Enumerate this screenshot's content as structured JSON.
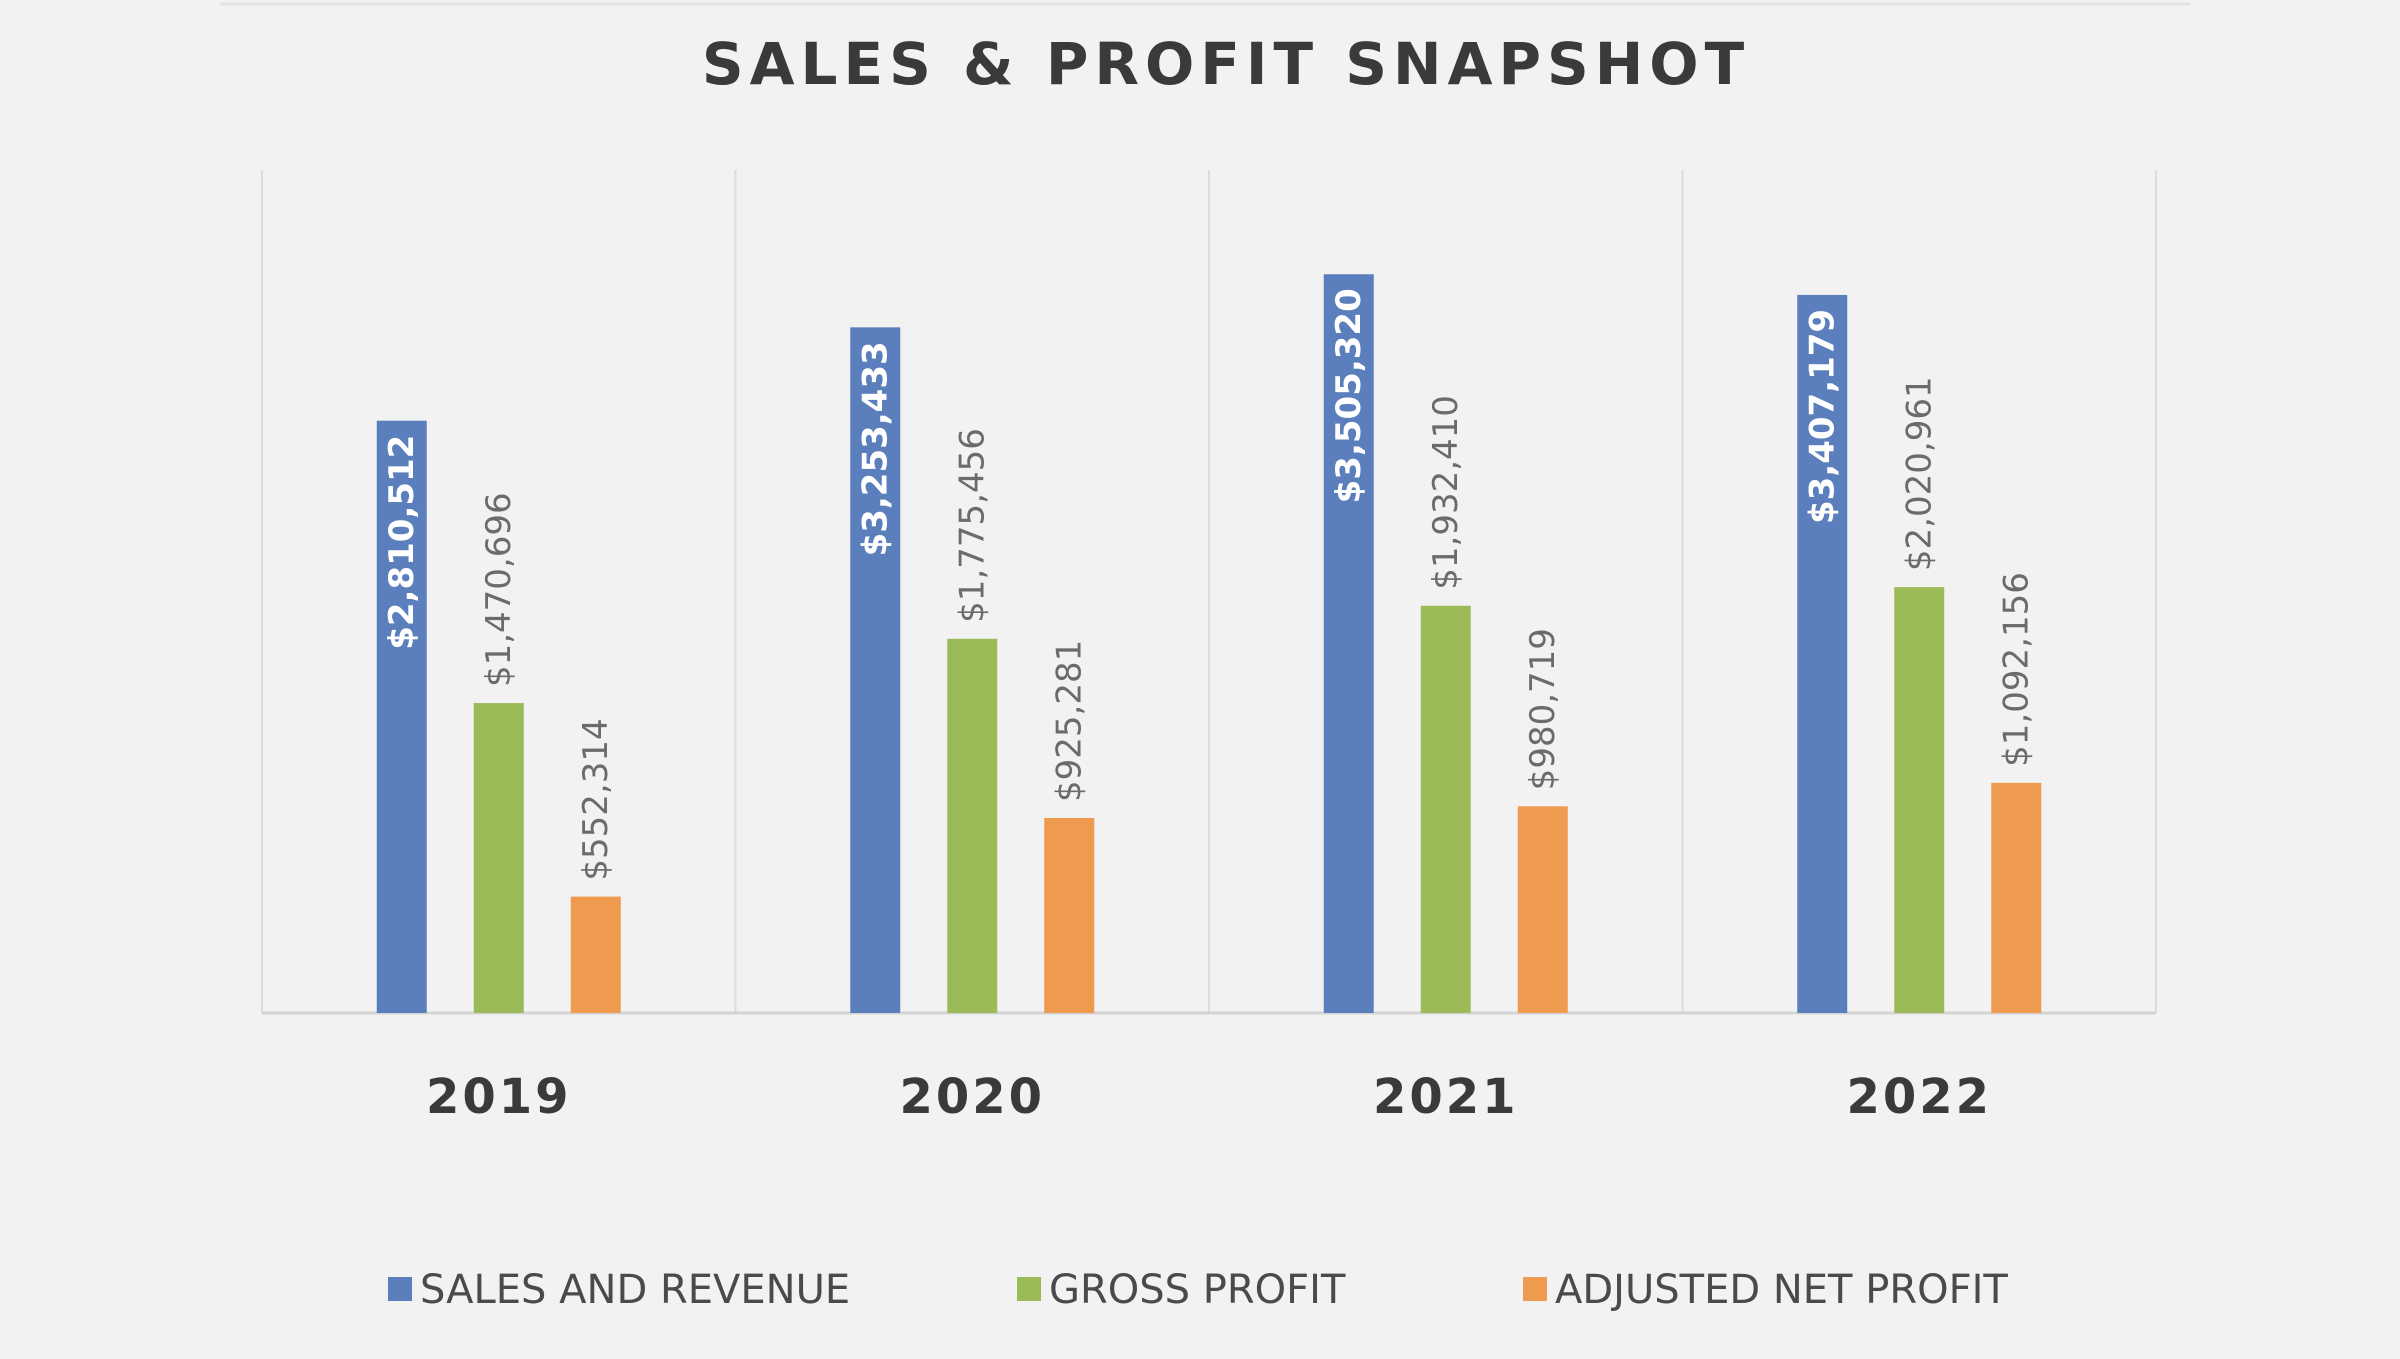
{
  "chart_data": {
    "type": "bar",
    "title": "SALES & PROFIT SNAPSHOT",
    "categories": [
      "2019",
      "2020",
      "2021",
      "2022"
    ],
    "series": [
      {
        "name": "SALES AND REVENUE",
        "color": "#5b7fbd",
        "values": [
          2810512,
          3253433,
          3505320,
          3407179
        ],
        "labels": [
          "$2,810,512",
          "$3,253,433",
          "$3,505,320",
          "$3,407,179"
        ],
        "label_position": "inside"
      },
      {
        "name": "GROSS PROFIT",
        "color": "#9bbb59",
        "values": [
          1470696,
          1775456,
          1932410,
          2020961
        ],
        "labels": [
          "$1,470,696",
          "$1,775,456",
          "$1,932,410",
          "$2,020,961"
        ],
        "label_position": "outside"
      },
      {
        "name": "ADJUSTED NET PROFIT",
        "color": "#ee9a4f",
        "values": [
          552314,
          925281,
          980719,
          1092156
        ],
        "labels": [
          "$552,314",
          "$925,281",
          "$980,719",
          "$1,092,156"
        ],
        "label_position": "outside"
      }
    ],
    "ylim": [
      0,
      4000000
    ],
    "grid": "vertical-category-separators",
    "legend": "bottom"
  }
}
